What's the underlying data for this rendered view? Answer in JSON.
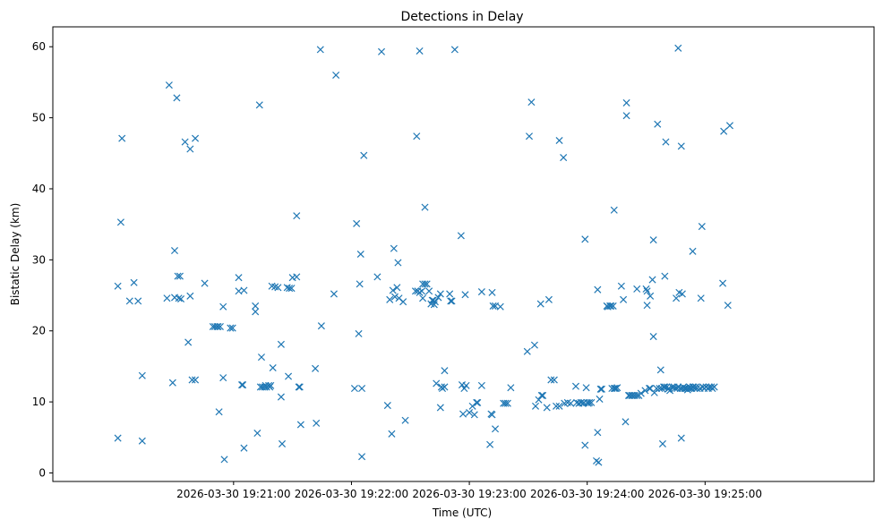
{
  "chart_data": {
    "type": "scatter",
    "title": "Detections in Delay",
    "xlabel": "Time (UTC)",
    "ylabel": "Bistatic Delay (km)",
    "x_unit": "seconds since 2026-03-30 19:20:00",
    "xlim": [
      -32,
      386
    ],
    "ylim": [
      -1.2,
      62.8
    ],
    "grid": false,
    "legend": "none",
    "marker": "x",
    "color": "#1f77b4",
    "x_ticks": [
      {
        "value": 60,
        "label": "2026-03-30 19:21:00"
      },
      {
        "value": 120,
        "label": "2026-03-30 19:22:00"
      },
      {
        "value": 180,
        "label": "2026-03-30 19:23:00"
      },
      {
        "value": 240,
        "label": "2026-03-30 19:24:00"
      },
      {
        "value": 300,
        "label": "2026-03-30 19:25:00"
      }
    ],
    "y_ticks": [
      {
        "value": 0,
        "label": "0"
      },
      {
        "value": 10,
        "label": "10"
      },
      {
        "value": 20,
        "label": "20"
      },
      {
        "value": 30,
        "label": "30"
      },
      {
        "value": 40,
        "label": "40"
      },
      {
        "value": 50,
        "label": "50"
      },
      {
        "value": 60,
        "label": "60"
      }
    ],
    "points": [
      [
        1.1,
        26.3
      ],
      [
        1.1,
        4.9
      ],
      [
        2.6,
        35.3
      ],
      [
        3.2,
        47.1
      ],
      [
        7.1,
        24.2
      ],
      [
        9.3,
        26.8
      ],
      [
        11.4,
        24.2
      ],
      [
        13.5,
        13.7
      ],
      [
        13.5,
        4.5
      ],
      [
        26.1,
        24.6
      ],
      [
        27.2,
        54.6
      ],
      [
        29.0,
        12.7
      ],
      [
        30.0,
        24.7
      ],
      [
        30.0,
        31.3
      ],
      [
        31.1,
        52.8
      ],
      [
        31.6,
        27.7
      ],
      [
        32.1,
        24.6
      ],
      [
        32.7,
        27.7
      ],
      [
        33.2,
        24.5
      ],
      [
        35.3,
        46.6
      ],
      [
        36.9,
        18.4
      ],
      [
        37.9,
        45.6
      ],
      [
        37.9,
        24.9
      ],
      [
        38.9,
        13.1
      ],
      [
        40.5,
        13.1
      ],
      [
        40.5,
        47.1
      ],
      [
        45.3,
        26.7
      ],
      [
        49.5,
        20.6
      ],
      [
        50.5,
        20.6
      ],
      [
        51.6,
        20.6
      ],
      [
        52.1,
        20.6
      ],
      [
        52.6,
        8.6
      ],
      [
        53.2,
        20.6
      ],
      [
        54.7,
        13.4
      ],
      [
        54.7,
        23.4
      ],
      [
        55.3,
        1.9
      ],
      [
        58.4,
        20.4
      ],
      [
        59.5,
        20.4
      ],
      [
        62.6,
        25.6
      ],
      [
        62.6,
        27.5
      ],
      [
        64.2,
        12.4
      ],
      [
        64.7,
        12.4
      ],
      [
        65.3,
        3.5
      ],
      [
        65.3,
        25.7
      ],
      [
        71.1,
        23.5
      ],
      [
        71.1,
        22.7
      ],
      [
        72.1,
        5.6
      ],
      [
        73.2,
        51.8
      ],
      [
        73.7,
        12.1
      ],
      [
        74.2,
        16.3
      ],
      [
        74.7,
        12.1
      ],
      [
        75.8,
        12.1
      ],
      [
        76.3,
        12.3
      ],
      [
        76.8,
        12.1
      ],
      [
        77.9,
        12.3
      ],
      [
        78.4,
        12.1
      ],
      [
        78.9,
        12.3
      ],
      [
        79.5,
        26.3
      ],
      [
        80.0,
        14.8
      ],
      [
        81.1,
        26.2
      ],
      [
        82.6,
        26.1
      ],
      [
        84.2,
        18.1
      ],
      [
        84.2,
        10.7
      ],
      [
        84.7,
        4.1
      ],
      [
        87.3,
        26.1
      ],
      [
        87.9,
        13.6
      ],
      [
        88.4,
        26.0
      ],
      [
        89.5,
        26.0
      ],
      [
        90.0,
        27.5
      ],
      [
        92.1,
        36.2
      ],
      [
        92.1,
        27.6
      ],
      [
        93.2,
        12.1
      ],
      [
        93.7,
        12.1
      ],
      [
        94.2,
        6.8
      ],
      [
        101.6,
        14.7
      ],
      [
        102.1,
        7.0
      ],
      [
        104.2,
        59.6
      ],
      [
        104.7,
        20.7
      ],
      [
        112.1,
        56.0
      ],
      [
        111.1,
        25.2
      ],
      [
        121.6,
        11.9
      ],
      [
        122.6,
        35.1
      ],
      [
        123.7,
        19.6
      ],
      [
        124.2,
        26.6
      ],
      [
        124.7,
        30.8
      ],
      [
        125.3,
        11.9
      ],
      [
        125.3,
        2.3
      ],
      [
        126.3,
        44.7
      ],
      [
        133.2,
        27.6
      ],
      [
        135.3,
        59.3
      ],
      [
        138.4,
        9.5
      ],
      [
        139.5,
        24.4
      ],
      [
        140.5,
        5.5
      ],
      [
        141.1,
        25.7
      ],
      [
        141.6,
        31.6
      ],
      [
        142.1,
        24.8
      ],
      [
        143.2,
        26.1
      ],
      [
        143.7,
        29.6
      ],
      [
        144.2,
        24.6
      ],
      [
        146.3,
        24.1
      ],
      [
        147.4,
        7.4
      ],
      [
        153.2,
        47.4
      ],
      [
        152.6,
        25.6
      ],
      [
        153.7,
        25.6
      ],
      [
        154.7,
        59.4
      ],
      [
        154.7,
        25.4
      ],
      [
        155.8,
        25.6
      ],
      [
        156.3,
        26.6
      ],
      [
        156.3,
        24.6
      ],
      [
        157.4,
        37.4
      ],
      [
        157.4,
        26.6
      ],
      [
        158.4,
        26.6
      ],
      [
        159.5,
        25.6
      ],
      [
        160.5,
        23.8
      ],
      [
        161.1,
        24.3
      ],
      [
        161.6,
        24.3
      ],
      [
        162.1,
        23.7
      ],
      [
        162.6,
        24.1
      ],
      [
        163.2,
        12.6
      ],
      [
        164.2,
        24.7
      ],
      [
        165.3,
        25.2
      ],
      [
        165.3,
        9.2
      ],
      [
        165.8,
        12.1
      ],
      [
        166.3,
        11.9
      ],
      [
        167.4,
        12.1
      ],
      [
        167.4,
        14.4
      ],
      [
        170.0,
        25.2
      ],
      [
        170.5,
        24.2
      ],
      [
        171.1,
        24.2
      ],
      [
        172.6,
        59.6
      ],
      [
        175.8,
        33.4
      ],
      [
        176.3,
        12.4
      ],
      [
        176.8,
        8.3
      ],
      [
        177.4,
        11.9
      ],
      [
        177.9,
        25.1
      ],
      [
        178.4,
        12.3
      ],
      [
        180.0,
        8.5
      ],
      [
        181.6,
        9.4
      ],
      [
        182.6,
        8.2
      ],
      [
        183.7,
        9.9
      ],
      [
        184.2,
        9.9
      ],
      [
        186.3,
        25.5
      ],
      [
        186.3,
        12.3
      ],
      [
        190.5,
        4.0
      ],
      [
        191.1,
        8.3
      ],
      [
        191.6,
        8.2
      ],
      [
        191.6,
        25.4
      ],
      [
        192.1,
        23.5
      ],
      [
        193.2,
        23.5
      ],
      [
        193.2,
        6.2
      ],
      [
        195.8,
        23.4
      ],
      [
        197.4,
        9.8
      ],
      [
        198.4,
        9.8
      ],
      [
        199.5,
        9.8
      ],
      [
        201.1,
        12.0
      ],
      [
        209.5,
        17.1
      ],
      [
        210.5,
        47.4
      ],
      [
        211.6,
        52.2
      ],
      [
        213.2,
        18.0
      ],
      [
        213.7,
        9.4
      ],
      [
        215.3,
        10.3
      ],
      [
        216.3,
        23.8
      ],
      [
        216.8,
        10.9
      ],
      [
        217.4,
        10.9
      ],
      [
        219.5,
        9.2
      ],
      [
        220.5,
        24.4
      ],
      [
        221.6,
        13.1
      ],
      [
        223.2,
        13.1
      ],
      [
        224.2,
        9.4
      ],
      [
        225.8,
        46.8
      ],
      [
        225.8,
        9.4
      ],
      [
        227.9,
        44.4
      ],
      [
        228.4,
        9.8
      ],
      [
        230.0,
        9.9
      ],
      [
        231.6,
        9.8
      ],
      [
        234.2,
        12.2
      ],
      [
        234.7,
        9.9
      ],
      [
        235.8,
        9.8
      ],
      [
        236.8,
        9.9
      ],
      [
        237.9,
        9.8
      ],
      [
        238.4,
        9.9
      ],
      [
        238.9,
        3.9
      ],
      [
        238.9,
        32.9
      ],
      [
        239.5,
        12.0
      ],
      [
        240.0,
        9.9
      ],
      [
        240.5,
        9.8
      ],
      [
        241.1,
        9.9
      ],
      [
        242.1,
        9.9
      ],
      [
        244.7,
        1.7
      ],
      [
        245.3,
        25.8
      ],
      [
        245.3,
        5.7
      ],
      [
        245.8,
        1.5
      ],
      [
        246.3,
        10.4
      ],
      [
        246.8,
        11.8
      ],
      [
        247.4,
        11.8
      ],
      [
        250.0,
        23.5
      ],
      [
        250.5,
        23.4
      ],
      [
        251.6,
        23.5
      ],
      [
        252.1,
        23.5
      ],
      [
        252.6,
        11.9
      ],
      [
        253.2,
        23.5
      ],
      [
        253.7,
        11.9
      ],
      [
        254.2,
        11.9
      ],
      [
        253.7,
        37.0
      ],
      [
        254.7,
        11.9
      ],
      [
        255.3,
        12.0
      ],
      [
        257.4,
        26.3
      ],
      [
        258.4,
        24.4
      ],
      [
        259.5,
        7.2
      ],
      [
        260.0,
        52.1
      ],
      [
        260.0,
        50.3
      ],
      [
        261.1,
        10.9
      ],
      [
        261.6,
        10.9
      ],
      [
        262.6,
        10.9
      ],
      [
        263.2,
        10.9
      ],
      [
        264.2,
        10.9
      ],
      [
        265.3,
        10.9
      ],
      [
        265.3,
        25.9
      ],
      [
        266.3,
        10.9
      ],
      [
        267.4,
        11.2
      ],
      [
        269.5,
        11.6
      ],
      [
        270.0,
        25.9
      ],
      [
        270.5,
        23.6
      ],
      [
        270.5,
        25.6
      ],
      [
        271.6,
        11.9
      ],
      [
        272.1,
        24.9
      ],
      [
        272.1,
        11.9
      ],
      [
        273.2,
        27.2
      ],
      [
        273.7,
        19.2
      ],
      [
        273.7,
        32.8
      ],
      [
        274.2,
        11.3
      ],
      [
        275.3,
        11.9
      ],
      [
        275.8,
        49.1
      ],
      [
        276.8,
        11.9
      ],
      [
        277.4,
        14.5
      ],
      [
        277.9,
        11.9
      ],
      [
        278.4,
        4.1
      ],
      [
        278.9,
        12.1
      ],
      [
        279.5,
        27.7
      ],
      [
        279.5,
        12.1
      ],
      [
        280.0,
        46.6
      ],
      [
        280.5,
        12.1
      ],
      [
        281.1,
        11.8
      ],
      [
        281.6,
        11.9
      ],
      [
        282.1,
        11.6
      ],
      [
        283.2,
        12.1
      ],
      [
        284.2,
        12.1
      ],
      [
        284.7,
        11.9
      ],
      [
        285.3,
        24.6
      ],
      [
        285.8,
        11.9
      ],
      [
        286.3,
        59.8
      ],
      [
        286.3,
        12.1
      ],
      [
        286.8,
        25.4
      ],
      [
        287.4,
        11.9
      ],
      [
        287.9,
        46.0
      ],
      [
        287.9,
        4.9
      ],
      [
        288.4,
        11.9
      ],
      [
        288.4,
        25.2
      ],
      [
        288.9,
        12.1
      ],
      [
        289.5,
        11.9
      ],
      [
        290.0,
        11.9
      ],
      [
        290.5,
        11.9
      ],
      [
        291.1,
        11.7
      ],
      [
        291.6,
        11.9
      ],
      [
        292.1,
        12.1
      ],
      [
        292.6,
        11.9
      ],
      [
        293.2,
        11.9
      ],
      [
        293.7,
        31.2
      ],
      [
        293.7,
        12.1
      ],
      [
        294.2,
        12.1
      ],
      [
        294.7,
        11.9
      ],
      [
        295.3,
        12.1
      ],
      [
        295.8,
        11.9
      ],
      [
        297.4,
        11.9
      ],
      [
        297.9,
        24.6
      ],
      [
        298.4,
        34.7
      ],
      [
        298.9,
        12.1
      ],
      [
        299.5,
        11.9
      ],
      [
        300.5,
        12.1
      ],
      [
        301.6,
        11.9
      ],
      [
        302.1,
        12.1
      ],
      [
        303.2,
        12.1
      ],
      [
        303.7,
        11.9
      ],
      [
        304.7,
        12.1
      ],
      [
        309.0,
        26.7
      ],
      [
        309.5,
        48.1
      ],
      [
        311.6,
        23.6
      ],
      [
        312.6,
        48.9
      ]
    ]
  }
}
